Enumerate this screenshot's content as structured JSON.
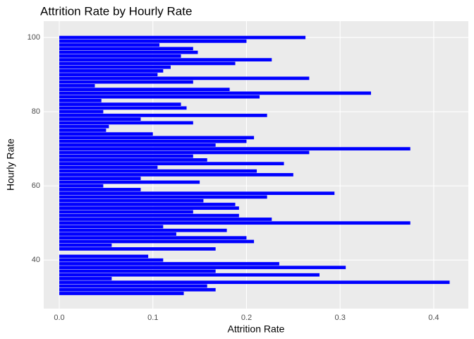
{
  "chart_data": {
    "type": "hbar",
    "title": "Attrition Rate by Hourly Rate",
    "x_label": "Attrition Rate",
    "y_label": "Hourly Rate",
    "x": [
      31,
      32,
      33,
      34,
      35,
      36,
      37,
      38,
      39,
      40,
      41,
      42,
      43,
      44,
      45,
      46,
      47,
      48,
      49,
      50,
      51,
      52,
      53,
      54,
      55,
      56,
      57,
      58,
      59,
      60,
      61,
      62,
      63,
      64,
      65,
      66,
      67,
      68,
      69,
      70,
      71,
      72,
      73,
      74,
      75,
      76,
      77,
      78,
      79,
      80,
      81,
      82,
      83,
      84,
      85,
      86,
      87,
      88,
      89,
      90,
      91,
      92,
      93,
      94,
      95,
      96,
      97,
      98,
      99,
      100
    ],
    "values": [
      0.133,
      0.167,
      0.158,
      0.417,
      0.056,
      0.278,
      0.167,
      0.306,
      0.235,
      0.111,
      0.095,
      0,
      0.167,
      0.056,
      0.208,
      0.2,
      0.125,
      0.179,
      0.111,
      0.375,
      0.227,
      0.192,
      0.143,
      0.192,
      0.188,
      0.154,
      0.222,
      0.294,
      0.087,
      0.047,
      0.15,
      0.087,
      0.25,
      0.211,
      0.105,
      0.24,
      0.158,
      0.143,
      0.267,
      0.375,
      0.167,
      0.2,
      0.208,
      0.1,
      0.05,
      0.053,
      0.143,
      0.087,
      0.222,
      0.047,
      0.136,
      0.13,
      0.045,
      0.214,
      0.333,
      0.182,
      0.038,
      0.143,
      0.267,
      0.105,
      0.111,
      0.119,
      0.188,
      0.227,
      0.13,
      0.148,
      0.143,
      0.107,
      0.2,
      0.263
    ],
    "color": "#0000ff",
    "xlim": [
      -0.0166,
      0.437
    ],
    "xticks": [
      {
        "value": 0,
        "label": "0.0"
      },
      0.1,
      0.2,
      0.3,
      0.4
    ],
    "ylim": [
      26.9,
      104.4
    ],
    "yticks": [
      40,
      60,
      80,
      100
    ],
    "grid": true
  }
}
